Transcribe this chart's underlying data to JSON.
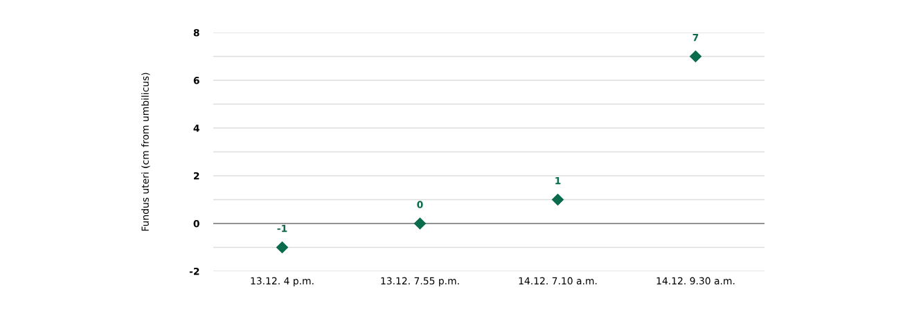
{
  "chart_data": {
    "type": "scatter",
    "ylabel": "Fundus uteri (cm from umbilicus)",
    "categories": [
      "13.12. 4 p.m.",
      "13.12. 7.55 p.m.",
      "14.12. 7.10 a.m.",
      "14.12. 9.30 a.m."
    ],
    "series": [
      {
        "color": "#0b6b4d",
        "values": [
          -1,
          0,
          1,
          7
        ]
      }
    ],
    "ylim": [
      -2,
      8
    ],
    "yticks": [
      -2,
      {
        "value": -1,
        "label": null
      },
      0,
      {
        "value": 1,
        "label": null
      },
      2,
      {
        "value": 3,
        "label": null
      },
      4,
      {
        "value": 5,
        "label": null
      },
      6,
      {
        "value": 7,
        "label": null
      },
      8
    ],
    "ref_lines": [
      {
        "axis": "y",
        "value": 0,
        "color": "#777777"
      }
    ],
    "grid": "y",
    "marker": "diamond",
    "data_labels": true
  }
}
